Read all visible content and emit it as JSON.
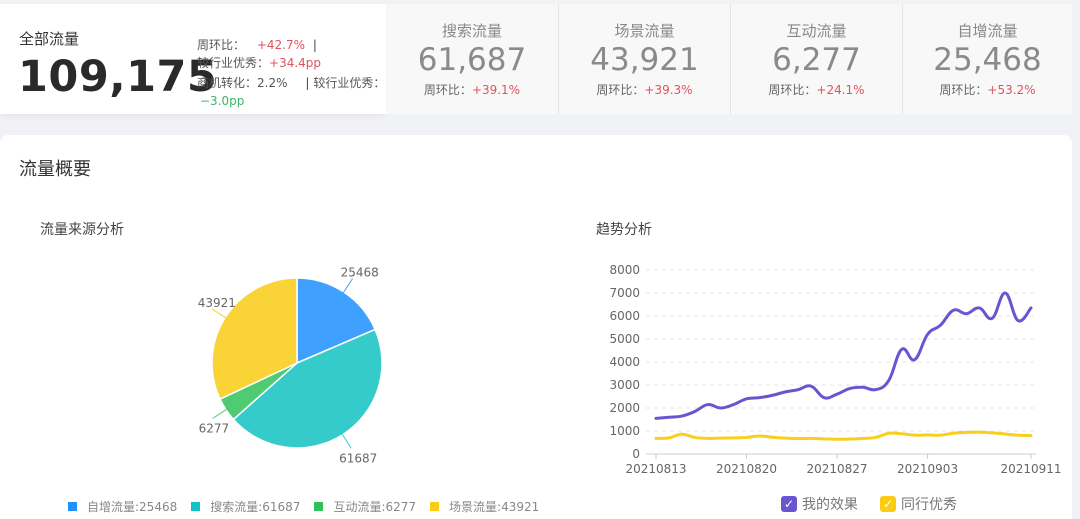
{
  "summary": {
    "total": {
      "title": "全部流量",
      "value": "109,175",
      "wow_label": "周环比：",
      "wow_value": "+42.7%",
      "divider": "|",
      "industry_label": "较行业优秀：",
      "industry_value": "+34.4pp",
      "conversion_label": "商机转化：",
      "conversion_value": "2.2%",
      "conversion_industry_label": "较行业优秀：",
      "conversion_industry_value": "−3.0pp"
    },
    "metrics": [
      {
        "title": "搜索流量",
        "value": "61,687",
        "change_label": "周环比：",
        "change_value": "+39.1%"
      },
      {
        "title": "场景流量",
        "value": "43,921",
        "change_label": "周环比：",
        "change_value": "+39.3%"
      },
      {
        "title": "互动流量",
        "value": "6,277",
        "change_label": "周环比：",
        "change_value": "+24.1%"
      },
      {
        "title": "自增流量",
        "value": "25,468",
        "change_label": "周环比：",
        "change_value": "+53.2%"
      }
    ]
  },
  "overview": {
    "title": "流量概要",
    "pie_title": "流量来源分析",
    "trend_title": "趋势分析",
    "pie_legend": [
      {
        "label": "自增流量:25468",
        "color": "#1e90ff"
      },
      {
        "label": "搜索流量:61687",
        "color": "#13c2c2"
      },
      {
        "label": "互动流量:6277",
        "color": "#2fc25b"
      },
      {
        "label": "场景流量:43921",
        "color": "#facc14"
      }
    ],
    "trend_legend": [
      {
        "label": "我的效果",
        "color": "#6a55d0",
        "checked": true
      },
      {
        "label": "同行优秀",
        "color": "#facc14",
        "checked": true
      }
    ],
    "check_glyph": "✓"
  },
  "colors": {
    "positive": "#e0525d",
    "negative": "#3cb46a",
    "purple_series": "#6a55d0",
    "yellow_series": "#f8cf1f"
  },
  "chart_data": [
    {
      "type": "pie",
      "title": "流量来源分析",
      "categories": [
        "自增流量",
        "搜索流量",
        "互动流量",
        "场景流量"
      ],
      "values": [
        25468,
        61687,
        6277,
        43921
      ],
      "colors": [
        "#3fa0ff",
        "#36cbcb",
        "#4ecb73",
        "#fad337"
      ],
      "data_labels": [
        "25468",
        "61687",
        "6277",
        "43921"
      ],
      "legend_position": "bottom"
    },
    {
      "type": "line",
      "title": "趋势分析",
      "x": [
        "20210813",
        "20210814",
        "20210815",
        "20210816",
        "20210817",
        "20210818",
        "20210819",
        "20210820",
        "20210821",
        "20210822",
        "20210823",
        "20210824",
        "20210825",
        "20210826",
        "20210827",
        "20210828",
        "20210829",
        "20210830",
        "20210831",
        "20210901",
        "20210902",
        "20210903",
        "20210904",
        "20210905",
        "20210906",
        "20210907",
        "20210908",
        "20210909",
        "20210910",
        "20210911"
      ],
      "x_tick_labels": [
        "20210813",
        "20210820",
        "20210827",
        "20210903",
        "20210911"
      ],
      "y_tick_labels": [
        "0",
        "1000",
        "2000",
        "3000",
        "4000",
        "5000",
        "6000",
        "7000",
        "8000"
      ],
      "ylim": [
        0,
        8000
      ],
      "grid": true,
      "legend_position": "bottom",
      "series": [
        {
          "name": "我的效果",
          "color": "#6a55d0",
          "values": [
            1550,
            1600,
            1650,
            1850,
            2150,
            2000,
            2150,
            2400,
            2450,
            2550,
            2700,
            2800,
            2950,
            2450,
            2600,
            2850,
            2900,
            2800,
            3200,
            4550,
            4100,
            5200,
            5600,
            6250,
            6100,
            6350,
            5900,
            7000,
            5800,
            6350
          ]
        },
        {
          "name": "同行优秀",
          "color": "#f8cf1f",
          "values": [
            680,
            700,
            860,
            720,
            680,
            690,
            700,
            720,
            780,
            730,
            690,
            670,
            680,
            660,
            640,
            650,
            680,
            720,
            900,
            880,
            820,
            830,
            820,
            900,
            940,
            950,
            920,
            870,
            820,
            800
          ]
        }
      ]
    }
  ]
}
